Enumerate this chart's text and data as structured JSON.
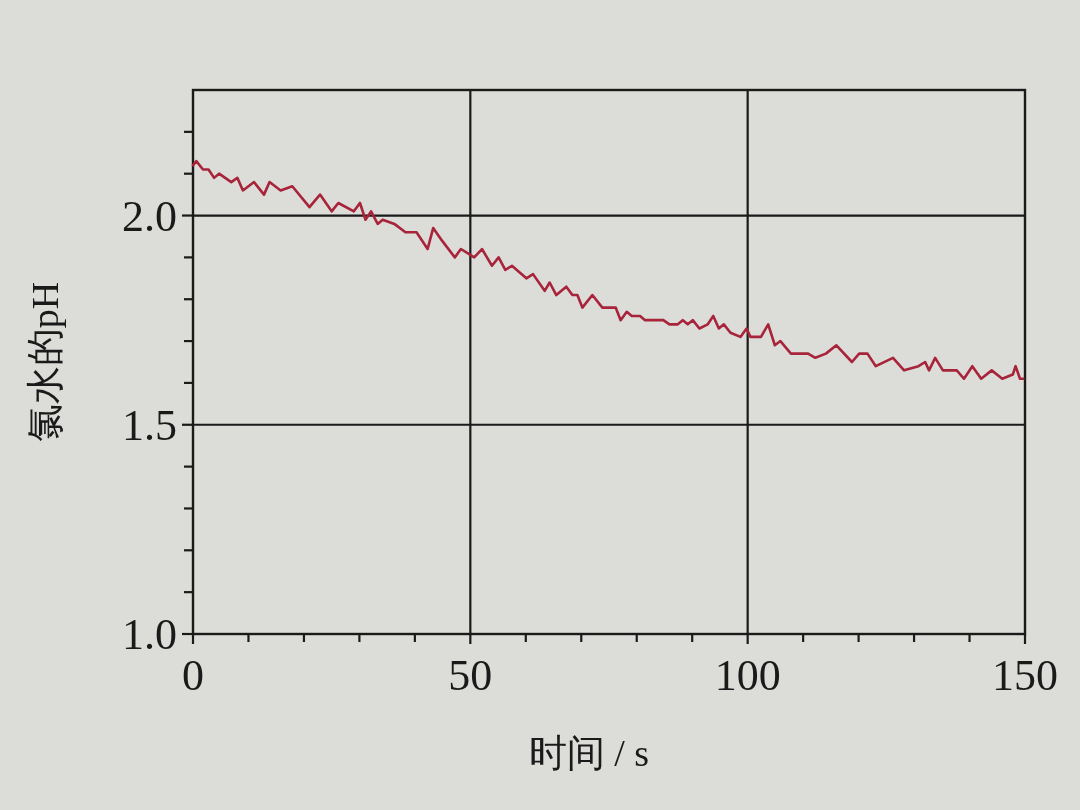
{
  "chart_data": {
    "type": "line",
    "xlabel": "时间 / s",
    "ylabel": "氯水的pH",
    "color": "#a8243a",
    "x": [
      0,
      0.6,
      1.8,
      2.8,
      3.8,
      4.7,
      6.9,
      8,
      9,
      11,
      12.8,
      13.8,
      15.8,
      17.9,
      21,
      22.9,
      25,
      26.2,
      29,
      30.1,
      31.1,
      32.1,
      33.3,
      34.2,
      36.3,
      38.3,
      40.3,
      42.3,
      43.3,
      44.9,
      47.2,
      48.3,
      49.5,
      50.7,
      52.1,
      53.9,
      55.1,
      56.3,
      57.5,
      60.1,
      61.3,
      63.4,
      64.3,
      65.5,
      67.3,
      68.4,
      69.3,
      70.2,
      72,
      73.8,
      76.2,
      77.1,
      78.2,
      79.1,
      80.6,
      81.5,
      83.3,
      84.8,
      85.9,
      87.4,
      88.3,
      89.2,
      90.1,
      91.3,
      92.8,
      93.8,
      94.8,
      95.7,
      96.9,
      98.7,
      99.8,
      100.5,
      102.4,
      103.7,
      104.9,
      105.9,
      107.8,
      110.9,
      112.2,
      114.1,
      116,
      118.8,
      120.1,
      121.6,
      123.1,
      126.2,
      128.2,
      130.8,
      132,
      132.7,
      133.8,
      135.2,
      137.7,
      139,
      140.5,
      142.1,
      144,
      145.9,
      147.8,
      148.3,
      149.1,
      149.7
    ],
    "values": [
      2.12,
      2.13,
      2.11,
      2.11,
      2.09,
      2.1,
      2.08,
      2.09,
      2.06,
      2.08,
      2.05,
      2.08,
      2.06,
      2.07,
      2.02,
      2.05,
      2.01,
      2.03,
      2.01,
      2.03,
      1.99,
      2.01,
      1.98,
      1.99,
      1.98,
      1.96,
      1.96,
      1.92,
      1.97,
      1.94,
      1.9,
      1.92,
      1.91,
      1.9,
      1.92,
      1.88,
      1.9,
      1.87,
      1.88,
      1.85,
      1.86,
      1.82,
      1.84,
      1.81,
      1.83,
      1.81,
      1.81,
      1.78,
      1.81,
      1.78,
      1.78,
      1.75,
      1.77,
      1.76,
      1.76,
      1.75,
      1.75,
      1.75,
      1.74,
      1.74,
      1.75,
      1.74,
      1.75,
      1.73,
      1.74,
      1.76,
      1.73,
      1.74,
      1.72,
      1.71,
      1.73,
      1.71,
      1.71,
      1.74,
      1.69,
      1.7,
      1.67,
      1.67,
      1.66,
      1.67,
      1.69,
      1.65,
      1.67,
      1.67,
      1.64,
      1.66,
      1.63,
      1.64,
      1.65,
      1.63,
      1.66,
      1.63,
      1.63,
      1.61,
      1.64,
      1.61,
      1.63,
      1.61,
      1.62,
      1.64,
      1.61,
      1.61
    ],
    "xlim": [
      0,
      150
    ],
    "ylim": [
      1.0,
      2.3
    ],
    "xticks": [
      0,
      {
        "value": 10,
        "label": null
      },
      {
        "value": 20,
        "label": null
      },
      {
        "value": 30,
        "label": null
      },
      {
        "value": 40,
        "label": null
      },
      50,
      {
        "value": 60,
        "label": null
      },
      {
        "value": 70,
        "label": null
      },
      {
        "value": 80,
        "label": null
      },
      {
        "value": 90,
        "label": null
      },
      100,
      {
        "value": 110,
        "label": null
      },
      {
        "value": 120,
        "label": null
      },
      {
        "value": 130,
        "label": null
      },
      {
        "value": 140,
        "label": null
      },
      150
    ],
    "yticks": [
      {
        "value": 1,
        "label": "1.0"
      },
      {
        "value": 1.1,
        "label": null
      },
      {
        "value": 1.2,
        "label": null
      },
      {
        "value": 1.3,
        "label": null
      },
      {
        "value": 1.4,
        "label": null
      },
      1.5,
      {
        "value": 1.6,
        "label": null
      },
      {
        "value": 1.7,
        "label": null
      },
      {
        "value": 1.8,
        "label": null
      },
      {
        "value": 1.9,
        "label": null
      },
      {
        "value": 2,
        "label": "2.0"
      },
      {
        "value": 2.1,
        "label": null
      },
      {
        "value": 2.2,
        "label": null
      }
    ],
    "grid": true
  }
}
